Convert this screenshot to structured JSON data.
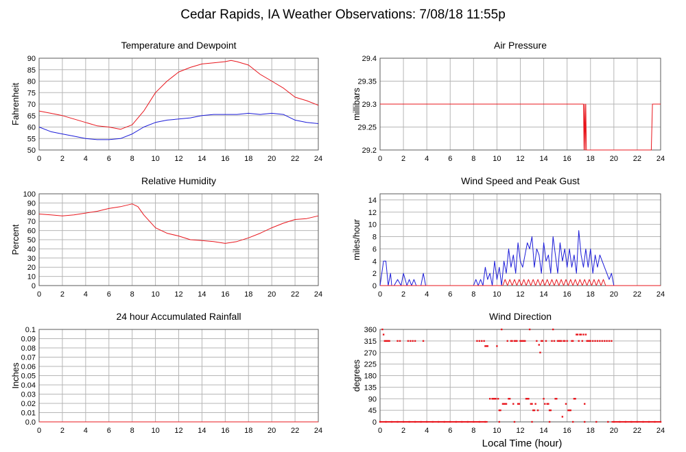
{
  "page": {
    "title": "Cedar Rapids, IA Weather Observations: 7/08/18 11:55p",
    "xlabel": "Local Time (hour)"
  },
  "colors": {
    "red": "#e8141b",
    "blue": "#1a1ad8",
    "grid": "#b5b5b5",
    "frame": "#5a5a5a",
    "text": "#000000"
  },
  "chart_data": [
    {
      "id": "temp",
      "type": "line",
      "title": "Temperature and Dewpoint",
      "ylabel": "Fahrenheit",
      "xlim": [
        0,
        24
      ],
      "ylim": [
        50,
        90
      ],
      "xticks": [
        0,
        2,
        4,
        6,
        8,
        10,
        12,
        14,
        16,
        18,
        20,
        22,
        24
      ],
      "yticks": [
        50,
        55,
        60,
        65,
        70,
        75,
        80,
        85,
        90
      ],
      "grid": true,
      "series": [
        {
          "color": "red",
          "x": [
            0,
            1,
            2,
            3,
            4,
            5,
            6,
            7,
            8,
            9,
            10,
            11,
            12,
            13,
            14,
            15,
            16,
            16.5,
            17,
            18,
            19,
            20,
            21,
            22,
            23,
            24
          ],
          "y": [
            67,
            66,
            65,
            63.5,
            62,
            60.5,
            60,
            59,
            61,
            67,
            75,
            80,
            84,
            86,
            87.5,
            88,
            88.5,
            89,
            88.5,
            87,
            83,
            80,
            77,
            73,
            71.5,
            69.5
          ]
        },
        {
          "color": "blue",
          "x": [
            0,
            1,
            2,
            3,
            4,
            5,
            6,
            7,
            8,
            9,
            10,
            11,
            12,
            13,
            14,
            15,
            16,
            17,
            18,
            19,
            20,
            21,
            22,
            23,
            24
          ],
          "y": [
            60,
            58,
            57,
            56,
            55,
            54.5,
            54.5,
            55,
            57,
            60,
            62,
            63,
            63.5,
            64,
            65,
            65.5,
            65.5,
            65.5,
            66,
            65.5,
            66,
            65.5,
            63,
            62,
            61.5
          ]
        }
      ]
    },
    {
      "id": "pressure",
      "type": "line",
      "title": "Air Pressure",
      "ylabel": "millibars",
      "xlim": [
        0,
        24
      ],
      "ylim": [
        29.2,
        29.4
      ],
      "xticks": [
        0,
        2,
        4,
        6,
        8,
        10,
        12,
        14,
        16,
        18,
        20,
        22,
        24
      ],
      "yticks": [
        29.2,
        29.25,
        29.3,
        29.35,
        29.4
      ],
      "ytick_labels": [
        "29.2",
        "29.25",
        "29.3",
        "29.35",
        "29.4"
      ],
      "grid": true,
      "series": [
        {
          "color": "red",
          "x": [
            0,
            17.4,
            17.45,
            17.5,
            17.55,
            17.6,
            17.65,
            23.2,
            23.3,
            24
          ],
          "y": [
            29.3,
            29.3,
            29.2,
            29.3,
            29.2,
            29.3,
            29.2,
            29.2,
            29.3,
            29.3
          ]
        }
      ]
    },
    {
      "id": "humidity",
      "type": "line",
      "title": "Relative Humidity",
      "ylabel": "Percent",
      "xlim": [
        0,
        24
      ],
      "ylim": [
        0,
        100
      ],
      "xticks": [
        0,
        2,
        4,
        6,
        8,
        10,
        12,
        14,
        16,
        18,
        20,
        22,
        24
      ],
      "yticks": [
        0,
        10,
        20,
        30,
        40,
        50,
        60,
        70,
        80,
        90,
        100
      ],
      "grid": true,
      "series": [
        {
          "color": "red",
          "x": [
            0,
            1,
            2,
            3,
            4,
            5,
            6,
            7,
            8,
            8.5,
            9,
            10,
            11,
            12,
            13,
            14,
            15,
            16,
            17,
            18,
            19,
            20,
            21,
            22,
            23,
            24
          ],
          "y": [
            78,
            77,
            76,
            77,
            79,
            81,
            84,
            86,
            89,
            86,
            77,
            63,
            57,
            54,
            50,
            49,
            48,
            46,
            48,
            52,
            57,
            63,
            68,
            72,
            73,
            76
          ]
        }
      ]
    },
    {
      "id": "wind",
      "type": "line",
      "title": "Wind Speed and Peak Gust",
      "ylabel": "miles/hour",
      "xlim": [
        0,
        24
      ],
      "ylim": [
        0,
        15
      ],
      "xticks": [
        0,
        2,
        4,
        6,
        8,
        10,
        12,
        14,
        16,
        18,
        20,
        22,
        24
      ],
      "yticks": [
        0,
        2,
        4,
        6,
        8,
        10,
        12,
        14
      ],
      "grid": true,
      "series": [
        {
          "color": "blue",
          "x": [
            0,
            0.3,
            0.5,
            0.7,
            0.9,
            1.0,
            1.2,
            1.5,
            1.8,
            2.0,
            2.3,
            2.5,
            2.7,
            2.9,
            3.1,
            3.5,
            3.7,
            3.9,
            8.0,
            8.2,
            8.4,
            8.6,
            8.8,
            9.0,
            9.2,
            9.4,
            9.6,
            9.8,
            10.0,
            10.2,
            10.4,
            10.6,
            10.8,
            11.0,
            11.2,
            11.4,
            11.6,
            11.8,
            12.0,
            12.2,
            12.4,
            12.6,
            12.8,
            13.0,
            13.2,
            13.4,
            13.6,
            13.8,
            14.0,
            14.2,
            14.4,
            14.6,
            14.8,
            15.0,
            15.2,
            15.4,
            15.6,
            15.8,
            16.0,
            16.2,
            16.4,
            16.6,
            16.8,
            17.0,
            17.2,
            17.4,
            17.6,
            17.8,
            18.0,
            18.2,
            18.4,
            18.6,
            18.8,
            19.0,
            19.2,
            19.4,
            19.6,
            19.8,
            20.0,
            24
          ],
          "y": [
            0,
            4,
            4,
            0,
            2,
            0,
            0,
            1,
            0,
            2,
            0,
            1,
            0,
            1,
            0,
            0,
            2,
            0,
            0,
            1,
            0,
            1,
            0,
            3,
            1,
            2,
            0,
            4,
            1,
            3,
            0,
            4,
            2,
            6,
            3,
            5,
            2,
            7,
            4,
            3,
            5,
            7,
            6,
            8,
            3,
            6,
            5,
            2,
            7,
            4,
            5,
            2,
            8,
            5,
            2,
            7,
            4,
            6,
            3,
            6,
            3,
            5,
            2,
            9,
            5,
            3,
            6,
            3,
            6,
            2,
            5,
            3,
            5,
            4,
            3,
            2,
            1,
            2,
            0,
            0
          ]
        },
        {
          "color": "red",
          "x": [
            0,
            10.5,
            10.7,
            10.9,
            11.1,
            11.3,
            11.5,
            11.7,
            11.9,
            12.1,
            12.3,
            12.5,
            12.7,
            12.9,
            13.1,
            13.3,
            13.5,
            13.7,
            13.9,
            14.1,
            14.3,
            14.5,
            14.7,
            14.9,
            15.1,
            15.3,
            15.5,
            15.7,
            15.9,
            16.1,
            16.3,
            16.5,
            16.7,
            16.9,
            17.1,
            17.3,
            17.5,
            17.7,
            17.9,
            18.1,
            18.3,
            18.5,
            18.7,
            18.9,
            19.1,
            19.3,
            24
          ],
          "y": [
            0,
            0,
            1,
            0,
            1,
            0,
            1,
            0,
            1,
            0,
            1,
            0,
            1,
            0,
            1,
            0,
            1,
            0,
            1,
            0,
            1,
            0,
            1,
            0,
            1,
            0,
            1,
            0,
            1,
            0,
            1,
            0,
            1,
            0,
            1,
            0,
            1,
            0,
            1,
            0,
            1,
            0,
            1,
            0,
            1,
            0,
            0
          ]
        }
      ]
    },
    {
      "id": "rain",
      "type": "line",
      "title": "24 hour Accumulated Rainfall",
      "ylabel": "Inches",
      "xlim": [
        0,
        24
      ],
      "ylim": [
        0,
        0.1
      ],
      "xticks": [
        0,
        2,
        4,
        6,
        8,
        10,
        12,
        14,
        16,
        18,
        20,
        22,
        24
      ],
      "yticks": [
        0,
        0.01,
        0.02,
        0.03,
        0.04,
        0.05,
        0.06,
        0.07,
        0.08,
        0.09,
        0.1
      ],
      "ytick_labels": [
        "0.0",
        "0.01",
        "0.02",
        "0.03",
        "0.04",
        "0.05",
        "0.06",
        "0.07",
        "0.08",
        "0.09",
        "0.1"
      ],
      "grid": true,
      "series": [
        {
          "color": "red",
          "x": [
            0,
            24
          ],
          "y": [
            0,
            0
          ]
        }
      ]
    },
    {
      "id": "direction",
      "type": "scatter",
      "title": "Wind Direction",
      "ylabel": "degrees",
      "xlim": [
        0,
        24
      ],
      "ylim": [
        0,
        360
      ],
      "xticks": [
        0,
        2,
        4,
        6,
        8,
        10,
        12,
        14,
        16,
        18,
        20,
        22,
        24
      ],
      "yticks": [
        0,
        45,
        90,
        135,
        180,
        225,
        270,
        315,
        360
      ],
      "grid": true,
      "series": [
        {
          "color": "red",
          "x": [
            0.2,
            0.3,
            0.4,
            0.5,
            0.6,
            0.7,
            0.8,
            1.5,
            1.7,
            2.4,
            2.6,
            2.8,
            3.0,
            3.7,
            8.3,
            8.5,
            8.7,
            8.9,
            9.0,
            9.1,
            9.2,
            9.4,
            9.6,
            9.7,
            9.8,
            9.9,
            10.0,
            10.1,
            10.2,
            10.3,
            10.4,
            10.5,
            10.6,
            10.7,
            10.8,
            10.9,
            11.0,
            11.1,
            11.2,
            11.3,
            11.4,
            11.5,
            11.6,
            11.7,
            11.8,
            11.9,
            12.0,
            12.1,
            12.2,
            12.3,
            12.4,
            12.5,
            12.6,
            12.7,
            12.8,
            12.9,
            13.0,
            13.1,
            13.2,
            13.3,
            13.4,
            13.5,
            13.6,
            13.7,
            13.8,
            13.9,
            14.0,
            14.1,
            14.2,
            14.3,
            14.4,
            14.5,
            14.6,
            14.7,
            14.8,
            14.9,
            15.0,
            15.1,
            15.2,
            15.3,
            15.4,
            15.5,
            15.6,
            15.7,
            15.8,
            15.9,
            16.0,
            16.1,
            16.2,
            16.3,
            16.4,
            16.5,
            16.6,
            16.7,
            16.8,
            16.9,
            17.0,
            17.1,
            17.2,
            17.3,
            17.4,
            17.5,
            17.6,
            17.7,
            17.8,
            17.9,
            18.0,
            18.2,
            18.4,
            18.6,
            18.8,
            19.0,
            19.2,
            19.4,
            19.6,
            19.8
          ],
          "y": [
            360,
            340,
            315,
            315,
            315,
            315,
            315,
            315,
            315,
            315,
            315,
            315,
            315,
            315,
            315,
            315,
            315,
            315,
            295,
            295,
            295,
            90,
            90,
            90,
            90,
            90,
            295,
            90,
            45,
            45,
            360,
            70,
            70,
            70,
            70,
            315,
            90,
            90,
            315,
            315,
            70,
            315,
            315,
            315,
            70,
            70,
            315,
            315,
            315,
            315,
            315,
            90,
            90,
            90,
            360,
            70,
            70,
            45,
            45,
            70,
            315,
            45,
            300,
            270,
            315,
            315,
            90,
            70,
            315,
            70,
            70,
            45,
            45,
            315,
            360,
            315,
            90,
            90,
            315,
            315,
            315,
            315,
            20,
            315,
            315,
            70,
            315,
            45,
            45,
            45,
            315,
            315,
            90,
            90,
            340,
            340,
            315,
            340,
            340,
            315,
            340,
            70,
            340,
            315,
            315,
            315,
            315,
            315,
            315,
            315,
            315,
            315,
            315,
            315,
            315,
            315
          ]
        },
        {
          "color": "red",
          "x": [
            0,
            0.5,
            1,
            1.5,
            2,
            2.5,
            3,
            3.5,
            4,
            4.5,
            5,
            5.5,
            6,
            6.5,
            7,
            7.5,
            8,
            8.5,
            9,
            10.2,
            11.5,
            13,
            14.5,
            16.5,
            17.5,
            18.5,
            19.5,
            20,
            20.5,
            21,
            21.5,
            22,
            22.5,
            23,
            23.5,
            24
          ],
          "y": [
            0,
            0,
            0,
            0,
            0,
            0,
            0,
            0,
            0,
            0,
            0,
            0,
            0,
            0,
            0,
            0,
            0,
            0,
            0,
            0,
            0,
            0,
            0,
            0,
            0,
            0,
            0,
            0,
            0,
            0,
            0,
            0,
            0,
            0,
            0,
            0
          ]
        }
      ]
    }
  ]
}
